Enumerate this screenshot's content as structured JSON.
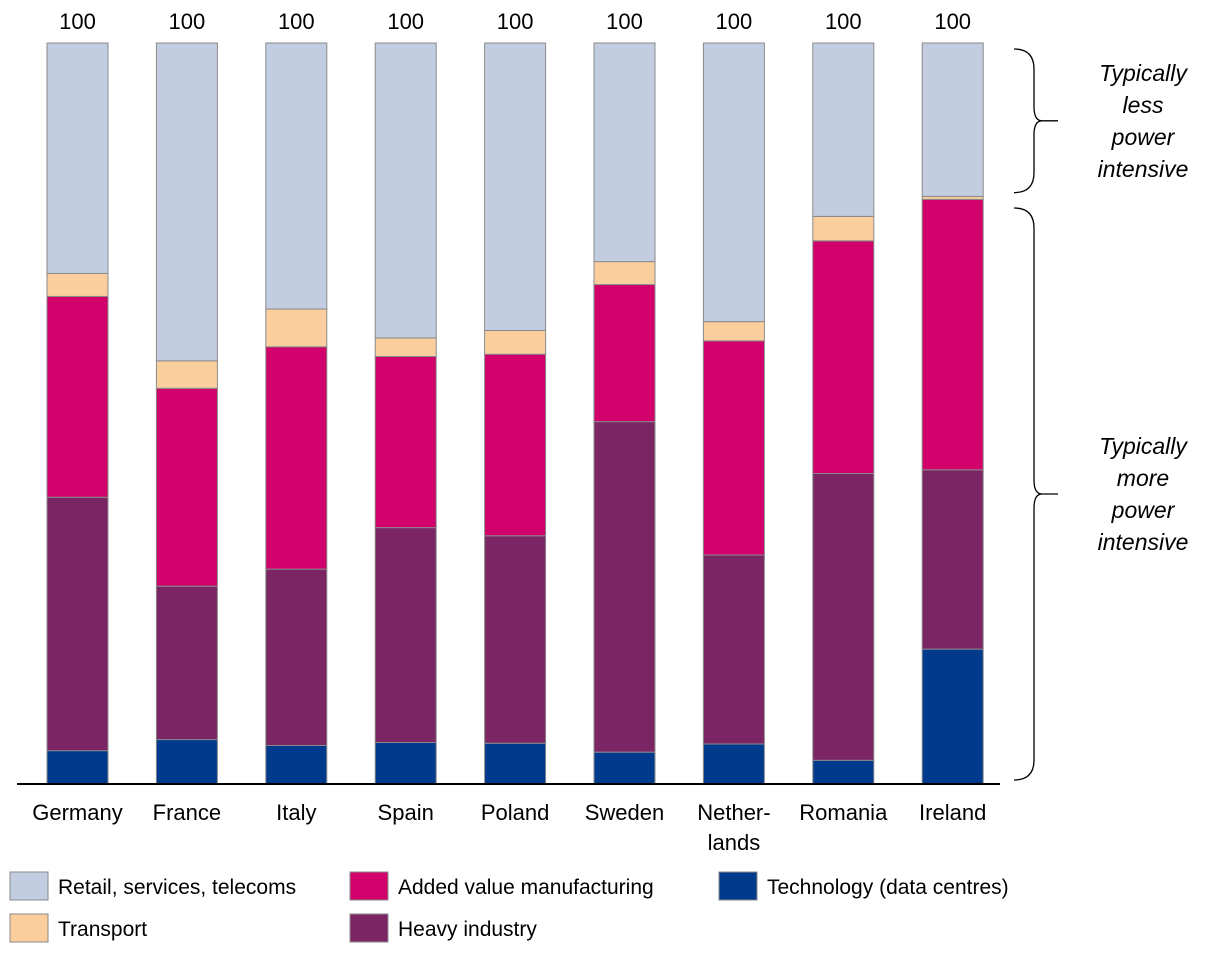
{
  "chart_data": {
    "type": "bar",
    "stacked": true,
    "categories": [
      "Germany",
      "France",
      "Italy",
      "Spain",
      "Poland",
      "Sweden",
      "Nether-\nlands",
      "Romania",
      "Ireland"
    ],
    "totals": [
      "100",
      "100",
      "100",
      "100",
      "100",
      "100",
      "100",
      "100",
      "100"
    ],
    "ylim": [
      0,
      100
    ],
    "grid": false,
    "legend_position": "bottom",
    "series": [
      {
        "name": "Technology (data centres)",
        "color": "#003A8C",
        "values": [
          4.5,
          6.0,
          5.2,
          5.6,
          5.5,
          4.3,
          5.4,
          3.2,
          18.2
        ]
      },
      {
        "name": "Heavy industry",
        "color": "#7C2565",
        "values": [
          34.2,
          20.7,
          23.8,
          29.0,
          28.0,
          44.6,
          25.5,
          38.7,
          24.2
        ]
      },
      {
        "name": "Added value manufacturing",
        "color": "#D1006B",
        "values": [
          27.1,
          26.7,
          30.0,
          23.1,
          24.5,
          18.5,
          28.9,
          31.4,
          36.5
        ]
      },
      {
        "name": "Transport",
        "color": "#FBCF9D",
        "values": [
          3.1,
          3.7,
          5.1,
          2.5,
          3.2,
          3.1,
          2.6,
          3.3,
          0.4
        ]
      },
      {
        "name": "Retail, services, telecoms",
        "color": "#C3CDE1",
        "values": [
          31.1,
          42.9,
          35.9,
          39.8,
          38.8,
          29.5,
          37.6,
          23.4,
          20.7
        ]
      }
    ],
    "legend_order": [
      "Retail, services, telecoms",
      "Added value manufacturing",
      "Technology (data centres)",
      "Transport",
      "Heavy industry"
    ],
    "annotations": [
      {
        "text": "Typically\nless\npower\nintensive",
        "from": 79,
        "to": 100
      },
      {
        "text": "Typically\nmore\npower\nintensive",
        "from": 0,
        "to": 78
      }
    ]
  }
}
